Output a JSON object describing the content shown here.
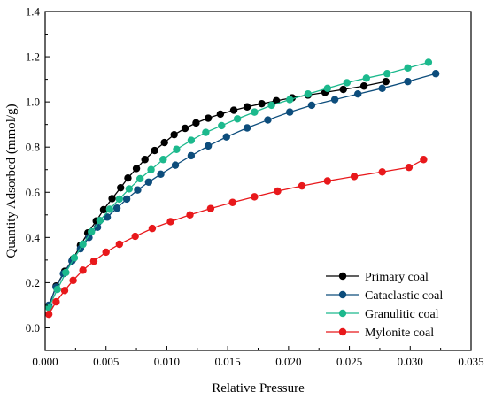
{
  "chart_data": {
    "type": "line",
    "xlabel": "Relative Pressure",
    "ylabel": "Quantity Adsorbed (mmol/g)",
    "xlim": [
      0.0,
      0.035
    ],
    "ylim": [
      -0.1,
      1.4
    ],
    "x_ticks": [
      0.0,
      0.005,
      0.01,
      0.015,
      0.02,
      0.025,
      0.03,
      0.035
    ],
    "x_tick_labels": [
      "0.000",
      "0.005",
      "0.010",
      "0.015",
      "0.020",
      "0.025",
      "0.030",
      "0.035"
    ],
    "y_ticks": [
      0.0,
      0.2,
      0.4,
      0.6,
      0.8,
      1.0,
      1.2,
      1.4
    ],
    "y_tick_labels": [
      "0.0",
      "0.2",
      "0.4",
      "0.6",
      "0.8",
      "1.0",
      "1.2",
      "1.4"
    ],
    "grid": false,
    "legend_position": "bottom-right",
    "series": [
      {
        "name": "Primary coal",
        "color": "#000000",
        "x": [
          0.0003,
          0.0009,
          0.0016,
          0.0023,
          0.0029,
          0.0035,
          0.0042,
          0.0048,
          0.0055,
          0.0062,
          0.0068,
          0.0075,
          0.0082,
          0.009,
          0.0098,
          0.0106,
          0.0115,
          0.0124,
          0.0134,
          0.0144,
          0.0155,
          0.0166,
          0.0178,
          0.019,
          0.0203,
          0.0216,
          0.023,
          0.0245,
          0.0262,
          0.028
        ],
        "y": [
          0.095,
          0.185,
          0.25,
          0.305,
          0.365,
          0.42,
          0.473,
          0.523,
          0.572,
          0.62,
          0.663,
          0.705,
          0.745,
          0.785,
          0.82,
          0.855,
          0.883,
          0.907,
          0.928,
          0.946,
          0.963,
          0.978,
          0.992,
          1.005,
          1.018,
          1.03,
          1.042,
          1.055,
          1.07,
          1.09
        ]
      },
      {
        "name": "Cataclastic coal",
        "color": "#0d4d7c",
        "x": [
          0.0003,
          0.0009,
          0.0015,
          0.0022,
          0.0029,
          0.0036,
          0.0043,
          0.0051,
          0.0059,
          0.0067,
          0.0076,
          0.0085,
          0.0095,
          0.0107,
          0.012,
          0.0134,
          0.0149,
          0.0166,
          0.0183,
          0.0201,
          0.0219,
          0.0238,
          0.0257,
          0.0277,
          0.0298,
          0.0321
        ],
        "y": [
          0.1,
          0.18,
          0.24,
          0.296,
          0.35,
          0.4,
          0.445,
          0.49,
          0.53,
          0.57,
          0.61,
          0.645,
          0.68,
          0.72,
          0.762,
          0.805,
          0.845,
          0.885,
          0.92,
          0.955,
          0.985,
          1.01,
          1.035,
          1.06,
          1.09,
          1.125
        ]
      },
      {
        "name": "Granulitic coal",
        "color": "#1cb98d",
        "x": [
          0.0003,
          0.001,
          0.0017,
          0.0024,
          0.0031,
          0.0038,
          0.0045,
          0.0053,
          0.0061,
          0.0069,
          0.0078,
          0.0087,
          0.0097,
          0.0108,
          0.012,
          0.0132,
          0.0145,
          0.0158,
          0.0172,
          0.0186,
          0.0201,
          0.0216,
          0.0232,
          0.0248,
          0.0264,
          0.0281,
          0.0298,
          0.0315
        ],
        "y": [
          0.09,
          0.17,
          0.245,
          0.31,
          0.37,
          0.425,
          0.475,
          0.525,
          0.57,
          0.615,
          0.66,
          0.7,
          0.745,
          0.79,
          0.83,
          0.865,
          0.895,
          0.925,
          0.955,
          0.985,
          1.01,
          1.035,
          1.06,
          1.085,
          1.105,
          1.125,
          1.15,
          1.175
        ]
      },
      {
        "name": "Mylonite coal",
        "color": "#e8181b",
        "x": [
          0.0003,
          0.0009,
          0.0016,
          0.0023,
          0.0031,
          0.004,
          0.005,
          0.0061,
          0.0074,
          0.0088,
          0.0103,
          0.0119,
          0.0136,
          0.0154,
          0.0172,
          0.0191,
          0.0211,
          0.0232,
          0.0254,
          0.0277,
          0.0299,
          0.0311
        ],
        "y": [
          0.06,
          0.115,
          0.165,
          0.21,
          0.255,
          0.295,
          0.335,
          0.37,
          0.405,
          0.44,
          0.47,
          0.5,
          0.528,
          0.555,
          0.58,
          0.605,
          0.628,
          0.65,
          0.67,
          0.69,
          0.71,
          0.745
        ]
      }
    ]
  }
}
